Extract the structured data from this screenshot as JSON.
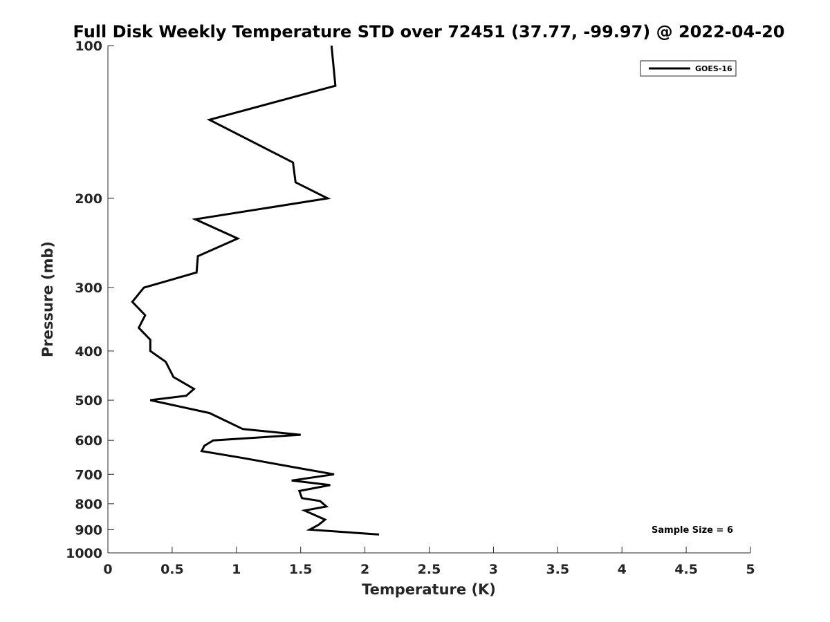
{
  "chart_data": {
    "type": "line",
    "title": "Full Disk Weekly Temperature STD over 72451 (37.77, -99.97) @ 2022-04-20",
    "xlabel": "Temperature (K)",
    "ylabel": "Pressure (mb)",
    "xlim": [
      0,
      5
    ],
    "ylim": [
      100,
      1000
    ],
    "y_scale": "log",
    "y_reversed": true,
    "grid": false,
    "x_ticks": [
      "0",
      "0.5",
      "1",
      "1.5",
      "2",
      "2.5",
      "3",
      "3.5",
      "4",
      "4.5",
      "5"
    ],
    "y_ticks": [
      "100",
      "200",
      "300",
      "400",
      "500",
      "600",
      "700",
      "800",
      "900",
      "1000"
    ],
    "legend_position": "top-right",
    "series": [
      {
        "name": "GOES-16",
        "color": "#000000",
        "points": [
          [
            1.74,
            100
          ],
          [
            1.77,
            120
          ],
          [
            0.79,
            140
          ],
          [
            1.44,
            170
          ],
          [
            1.46,
            186
          ],
          [
            1.71,
            200
          ],
          [
            0.68,
            220
          ],
          [
            1.01,
            240
          ],
          [
            0.7,
            260
          ],
          [
            0.69,
            280
          ],
          [
            0.28,
            300
          ],
          [
            0.19,
            320
          ],
          [
            0.29,
            340
          ],
          [
            0.24,
            360
          ],
          [
            0.33,
            380
          ],
          [
            0.33,
            400
          ],
          [
            0.45,
            420
          ],
          [
            0.51,
            450
          ],
          [
            0.67,
            475
          ],
          [
            0.61,
            490
          ],
          [
            0.33,
            500
          ],
          [
            0.79,
            530
          ],
          [
            1.05,
            570
          ],
          [
            1.5,
            585
          ],
          [
            0.82,
            600
          ],
          [
            0.75,
            615
          ],
          [
            0.73,
            630
          ],
          [
            1.05,
            650
          ],
          [
            1.48,
            680
          ],
          [
            1.76,
            700
          ],
          [
            1.43,
            720
          ],
          [
            1.73,
            735
          ],
          [
            1.49,
            755
          ],
          [
            1.51,
            780
          ],
          [
            1.65,
            790
          ],
          [
            1.7,
            810
          ],
          [
            1.53,
            825
          ],
          [
            1.69,
            860
          ],
          [
            1.64,
            880
          ],
          [
            1.57,
            900
          ],
          [
            2.11,
            920
          ]
        ]
      }
    ],
    "annotations": [
      "Sample Size = 6"
    ]
  }
}
